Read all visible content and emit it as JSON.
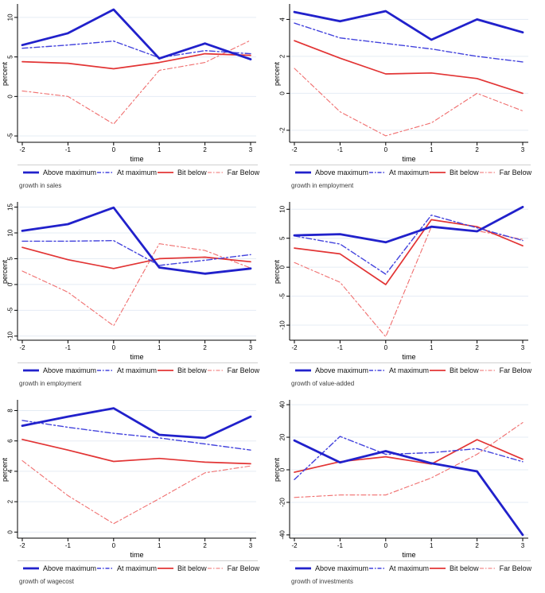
{
  "figure": {
    "xlabel": "time",
    "ylabel": "percent",
    "x_ticks": [
      -2,
      -1,
      0,
      1,
      2,
      3
    ]
  },
  "palette": {
    "above_maximum": "#2121cb",
    "at_maximum": "#4343dd",
    "bit_below": "#e23434",
    "far_below": "#f06e6e",
    "grid": "#e5ecf4",
    "axis": "#000000",
    "legend_divider": "#cfcfcf",
    "caption_text": "#3d3d3d"
  },
  "legend": {
    "entries": [
      {
        "label": "Above maximum",
        "color_key": "above_maximum",
        "line": "solid-thick"
      },
      {
        "label": "At maximum",
        "color_key": "at_maximum",
        "line": "dash-dot"
      },
      {
        "label": "Bit below",
        "color_key": "bit_below",
        "line": "solid"
      },
      {
        "label": "Far Below",
        "color_key": "far_below",
        "line": "dash-dot"
      }
    ],
    "position": "bottom"
  },
  "chart_data": [
    {
      "type": "line",
      "caption": "growth in sales",
      "position": "top-left",
      "xlabel": "time",
      "ylabel": "percent",
      "x": [
        -2,
        -1,
        0,
        1,
        2,
        3
      ],
      "y_ticks": [
        -5,
        0,
        5,
        10
      ],
      "ylim": [
        -5.8,
        11.5
      ],
      "grid": true,
      "series": [
        {
          "name": "Above maximum",
          "values": [
            6.5,
            8.0,
            11.0,
            4.8,
            6.7,
            4.7
          ]
        },
        {
          "name": "At maximum",
          "values": [
            6.1,
            6.5,
            7.0,
            4.9,
            5.8,
            5.4
          ]
        },
        {
          "name": "Bit below",
          "values": [
            4.4,
            4.2,
            3.5,
            4.3,
            5.4,
            5.2
          ]
        },
        {
          "name": "Far Below",
          "values": [
            0.7,
            0.0,
            -3.5,
            3.3,
            4.3,
            7.1
          ]
        }
      ]
    },
    {
      "type": "line",
      "caption": "growth in employment",
      "position": "top-right",
      "xlabel": "time",
      "ylabel": "percent",
      "x": [
        -2,
        -1,
        0,
        1,
        2,
        3
      ],
      "y_ticks": [
        -2,
        0,
        2,
        4
      ],
      "ylim": [
        -2.65,
        4.75
      ],
      "grid": true,
      "series": [
        {
          "name": "Above maximum",
          "values": [
            4.4,
            3.9,
            4.45,
            2.9,
            4.0,
            3.3
          ]
        },
        {
          "name": "At maximum",
          "values": [
            3.8,
            3.0,
            2.7,
            2.4,
            2.0,
            1.7
          ]
        },
        {
          "name": "Bit below",
          "values": [
            2.85,
            1.9,
            1.05,
            1.1,
            0.8,
            0.0
          ]
        },
        {
          "name": "Far Below",
          "values": [
            1.35,
            -1.0,
            -2.3,
            -1.6,
            0.0,
            -0.95
          ]
        }
      ]
    },
    {
      "type": "line",
      "caption": "growth in employment",
      "position": "middle-left",
      "xlabel": "time",
      "ylabel": "percent",
      "x": [
        -2,
        -1,
        0,
        1,
        2,
        3
      ],
      "y_ticks": [
        -10,
        -5,
        0,
        5,
        10,
        15
      ],
      "ylim": [
        -10.8,
        15.7
      ],
      "grid": true,
      "series": [
        {
          "name": "Above maximum",
          "values": [
            10.4,
            11.7,
            14.9,
            3.3,
            2.1,
            3.1
          ]
        },
        {
          "name": "At maximum",
          "values": [
            8.4,
            8.4,
            8.5,
            3.7,
            4.7,
            5.8
          ]
        },
        {
          "name": "Bit below",
          "values": [
            7.2,
            4.8,
            3.1,
            5.0,
            5.3,
            4.4
          ]
        },
        {
          "name": "Far Below",
          "values": [
            2.6,
            -1.5,
            -8.0,
            7.9,
            6.6,
            3.2
          ]
        }
      ]
    },
    {
      "type": "line",
      "caption": "growth of value-added",
      "position": "middle-right",
      "xlabel": "time",
      "ylabel": "percent",
      "x": [
        -2,
        -1,
        0,
        1,
        2,
        3
      ],
      "y_ticks": [
        -10,
        -5,
        0,
        5,
        10
      ],
      "ylim": [
        -12.6,
        11.0
      ],
      "grid": true,
      "series": [
        {
          "name": "Above maximum",
          "values": [
            5.5,
            5.7,
            4.3,
            7.0,
            6.2,
            10.4
          ]
        },
        {
          "name": "At maximum",
          "values": [
            5.4,
            4.0,
            -1.2,
            9.0,
            6.8,
            4.6
          ]
        },
        {
          "name": "Bit below",
          "values": [
            3.3,
            2.3,
            -3.0,
            8.2,
            7.0,
            3.7
          ]
        },
        {
          "name": "Far Below",
          "values": [
            0.8,
            -2.6,
            -12.0,
            7.0,
            6.3,
            4.8
          ]
        }
      ]
    },
    {
      "type": "line",
      "caption": "growth of wagecost",
      "position": "bottom-left",
      "xlabel": "time",
      "ylabel": "percent",
      "x": [
        -2,
        -1,
        0,
        1,
        2,
        3
      ],
      "y_ticks": [
        0,
        2,
        4,
        6,
        8
      ],
      "ylim": [
        -0.4,
        8.6
      ],
      "grid": true,
      "series": [
        {
          "name": "Above maximum",
          "values": [
            7.0,
            7.6,
            8.15,
            6.4,
            6.2,
            7.6
          ]
        },
        {
          "name": "At maximum",
          "values": [
            7.35,
            6.9,
            6.5,
            6.2,
            5.8,
            5.4
          ]
        },
        {
          "name": "Bit below",
          "values": [
            6.1,
            5.4,
            4.65,
            4.85,
            4.6,
            4.5
          ]
        },
        {
          "name": "Far Below",
          "values": [
            4.7,
            2.4,
            0.55,
            2.2,
            3.9,
            4.35
          ]
        }
      ]
    },
    {
      "type": "line",
      "caption": "growth of investments",
      "position": "bottom-right",
      "xlabel": "time",
      "ylabel": "percent",
      "x": [
        -2,
        -1,
        0,
        1,
        2,
        3
      ],
      "y_ticks": [
        -40,
        -20,
        0,
        20,
        40
      ],
      "ylim": [
        -42,
        42
      ],
      "grid": true,
      "series": [
        {
          "name": "Above maximum",
          "values": [
            18,
            4.5,
            11.5,
            4,
            -1,
            -40
          ]
        },
        {
          "name": "At maximum",
          "values": [
            -6,
            20.5,
            9.5,
            10.5,
            13,
            5
          ]
        },
        {
          "name": "Bit below",
          "values": [
            -1.5,
            5,
            8,
            3.5,
            18.5,
            6.5
          ]
        },
        {
          "name": "Far Below",
          "values": [
            -17,
            -15.5,
            -15.5,
            -5,
            9.5,
            29
          ]
        }
      ]
    }
  ]
}
